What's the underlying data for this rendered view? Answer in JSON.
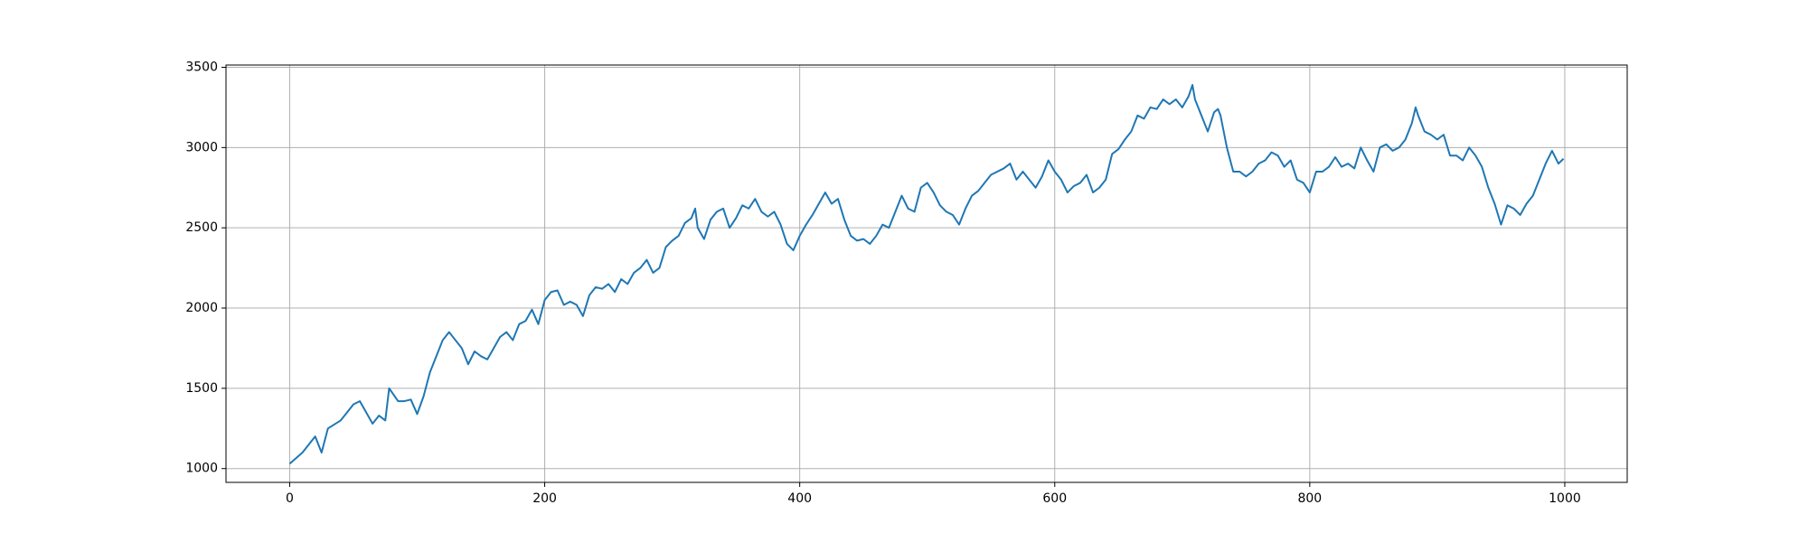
{
  "chart_data": {
    "type": "line",
    "color": "#1f77b4",
    "grid": true,
    "x": [
      0,
      10,
      20,
      25,
      30,
      40,
      50,
      55,
      60,
      65,
      70,
      75,
      78,
      85,
      90,
      95,
      100,
      105,
      110,
      115,
      120,
      125,
      130,
      135,
      140,
      145,
      150,
      155,
      160,
      165,
      170,
      175,
      180,
      185,
      190,
      195,
      200,
      205,
      210,
      215,
      220,
      225,
      230,
      235,
      240,
      245,
      250,
      255,
      260,
      265,
      270,
      275,
      280,
      285,
      290,
      295,
      300,
      305,
      310,
      315,
      318,
      320,
      325,
      330,
      335,
      340,
      345,
      350,
      355,
      360,
      365,
      370,
      375,
      380,
      385,
      390,
      395,
      400,
      405,
      410,
      415,
      420,
      425,
      430,
      435,
      440,
      445,
      450,
      455,
      460,
      465,
      470,
      475,
      480,
      485,
      490,
      495,
      500,
      505,
      510,
      515,
      520,
      525,
      530,
      535,
      540,
      545,
      550,
      555,
      560,
      565,
      570,
      575,
      580,
      585,
      590,
      595,
      600,
      605,
      610,
      615,
      620,
      625,
      630,
      635,
      640,
      645,
      650,
      655,
      660,
      665,
      670,
      675,
      680,
      685,
      690,
      695,
      700,
      705,
      708,
      710,
      715,
      720,
      725,
      728,
      730,
      735,
      740,
      745,
      750,
      755,
      760,
      765,
      770,
      775,
      780,
      785,
      790,
      795,
      800,
      805,
      810,
      815,
      820,
      825,
      830,
      835,
      840,
      845,
      850,
      855,
      860,
      865,
      870,
      875,
      880,
      883,
      885,
      890,
      895,
      900,
      905,
      910,
      915,
      920,
      925,
      930,
      935,
      940,
      945,
      950,
      955,
      960,
      965,
      970,
      975,
      980,
      985,
      990,
      995,
      999
    ],
    "values": [
      1030,
      1100,
      1200,
      1100,
      1250,
      1300,
      1400,
      1420,
      1350,
      1280,
      1330,
      1300,
      1500,
      1420,
      1420,
      1430,
      1340,
      1450,
      1600,
      1700,
      1800,
      1850,
      1800,
      1750,
      1650,
      1730,
      1700,
      1680,
      1750,
      1820,
      1850,
      1800,
      1900,
      1920,
      1990,
      1900,
      2050,
      2100,
      2110,
      2020,
      2040,
      2020,
      1950,
      2080,
      2130,
      2120,
      2150,
      2100,
      2180,
      2150,
      2220,
      2250,
      2300,
      2220,
      2250,
      2380,
      2420,
      2450,
      2530,
      2560,
      2620,
      2500,
      2430,
      2550,
      2600,
      2620,
      2500,
      2560,
      2640,
      2620,
      2680,
      2600,
      2570,
      2600,
      2520,
      2400,
      2360,
      2450,
      2520,
      2580,
      2650,
      2720,
      2650,
      2680,
      2550,
      2450,
      2420,
      2430,
      2400,
      2450,
      2520,
      2500,
      2600,
      2700,
      2620,
      2600,
      2750,
      2780,
      2720,
      2640,
      2600,
      2580,
      2520,
      2620,
      2700,
      2730,
      2780,
      2830,
      2850,
      2870,
      2900,
      2800,
      2850,
      2800,
      2750,
      2820,
      2920,
      2850,
      2800,
      2720,
      2760,
      2780,
      2830,
      2720,
      2750,
      2800,
      2960,
      2990,
      3050,
      3100,
      3200,
      3180,
      3250,
      3240,
      3300,
      3270,
      3300,
      3250,
      3320,
      3390,
      3300,
      3200,
      3100,
      3220,
      3240,
      3200,
      3000,
      2850,
      2850,
      2820,
      2850,
      2900,
      2920,
      2970,
      2950,
      2880,
      2920,
      2800,
      2780,
      2720,
      2850,
      2850,
      2880,
      2940,
      2880,
      2900,
      2870,
      3000,
      2920,
      2850,
      3000,
      3020,
      2980,
      3000,
      3050,
      3150,
      3250,
      3200,
      3100,
      3080,
      3050,
      3080,
      2950,
      2950,
      2920,
      3000,
      2950,
      2880,
      2750,
      2650,
      2520,
      2640,
      2620,
      2580,
      2650,
      2700,
      2800,
      2900,
      2980,
      2900,
      2930
    ],
    "xlim": [
      -49.95,
      1048.95
    ],
    "ylim": [
      914,
      3514
    ],
    "xticks": [
      0,
      200,
      400,
      600,
      800,
      1000
    ],
    "yticks": [
      1000,
      1500,
      2000,
      2500,
      3000,
      3500
    ]
  }
}
